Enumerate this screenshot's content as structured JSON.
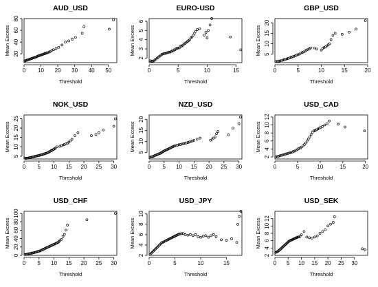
{
  "chart_data": [
    {
      "type": "scatter",
      "title": "AUD_USD",
      "xlabel": "Threshold",
      "ylabel": "Mean Excess",
      "xlim": [
        0,
        55
      ],
      "ylim": [
        5,
        80
      ],
      "xticks": [
        0,
        10,
        20,
        30,
        40,
        50
      ],
      "yticks": [
        20,
        40,
        60,
        80
      ],
      "x": [
        0.5,
        1.0,
        1.5,
        2.0,
        2.5,
        3.0,
        3.5,
        4.0,
        4.5,
        5.0,
        5.5,
        6.0,
        6.5,
        7.0,
        7.5,
        8.0,
        8.5,
        9.0,
        9.5,
        10.0,
        10.5,
        11.0,
        11.5,
        12.0,
        12.5,
        13.0,
        13.5,
        14.0,
        15.0,
        15.5,
        16.5,
        17.5,
        19.0,
        20.5,
        22.5,
        24.5,
        26.5,
        28.5,
        30.5,
        34.5,
        35.5,
        50.5,
        53.0
      ],
      "y": [
        8,
        8.5,
        9,
        9.5,
        10,
        10.5,
        11,
        11.5,
        12,
        12.5,
        13,
        13.5,
        14,
        14.5,
        15,
        16,
        16.5,
        17,
        17.5,
        18,
        18.5,
        19,
        19.5,
        20,
        20.5,
        21,
        21.5,
        22,
        23,
        24,
        26,
        27,
        29,
        31,
        35,
        40,
        42,
        45,
        48,
        55,
        66,
        62,
        78
      ]
    },
    {
      "type": "scatter",
      "title": "EURO-USD",
      "xlabel": "Threshold",
      "ylabel": "Mean Excess",
      "xlim": [
        0,
        16
      ],
      "ylim": [
        1.5,
        6.3
      ],
      "xticks": [
        0,
        5,
        10,
        15
      ],
      "yticks": [
        2,
        3,
        4,
        5,
        6
      ],
      "x": [
        0.2,
        0.4,
        0.6,
        0.8,
        1.0,
        1.2,
        1.4,
        1.6,
        1.8,
        2.0,
        2.2,
        2.4,
        2.6,
        2.8,
        3.0,
        3.2,
        3.4,
        3.6,
        3.8,
        4.0,
        4.2,
        4.4,
        4.6,
        4.8,
        5.0,
        5.2,
        5.4,
        5.6,
        5.8,
        6.0,
        6.2,
        6.4,
        6.6,
        6.8,
        7.0,
        7.2,
        7.4,
        7.6,
        7.8,
        8.0,
        8.3,
        8.7,
        9.5,
        9.8,
        10.0,
        10.2,
        10.5,
        10.8,
        14.0,
        15.8
      ],
      "y": [
        1.7,
        1.65,
        1.65,
        1.7,
        1.8,
        1.9,
        2.0,
        2.1,
        2.2,
        2.3,
        2.4,
        2.45,
        2.5,
        2.5,
        2.55,
        2.6,
        2.65,
        2.65,
        2.7,
        2.8,
        2.8,
        2.9,
        3.0,
        3.05,
        3.1,
        3.1,
        3.3,
        3.3,
        3.4,
        3.5,
        3.6,
        3.7,
        3.8,
        3.9,
        4.0,
        4.2,
        4.3,
        4.5,
        4.7,
        4.9,
        5.1,
        5.2,
        4.5,
        4.8,
        4.2,
        5.0,
        5.6,
        6.3,
        4.3,
        2.9
      ]
    },
    {
      "type": "scatter",
      "title": "GBP_USD",
      "xlabel": "Threshold",
      "ylabel": "Mean Excess",
      "xlim": [
        0,
        20
      ],
      "ylim": [
        1,
        22
      ],
      "xticks": [
        0,
        5,
        10,
        15,
        20
      ],
      "yticks": [
        5,
        10,
        15,
        20
      ],
      "x": [
        0.2,
        0.5,
        0.8,
        1.1,
        1.4,
        1.7,
        2.0,
        2.3,
        2.6,
        2.9,
        3.2,
        3.5,
        3.8,
        4.1,
        4.4,
        4.7,
        5.0,
        5.3,
        5.6,
        5.9,
        6.2,
        6.5,
        6.8,
        7.1,
        7.4,
        7.7,
        8.5,
        9.0,
        10.0,
        10.3,
        10.6,
        10.9,
        11.2,
        11.5,
        11.8,
        12.1,
        12.5,
        13.0,
        14.5,
        16.0,
        17.5,
        19.5
      ],
      "y": [
        1.5,
        1.6,
        1.7,
        1.8,
        2.0,
        2.2,
        2.4,
        2.6,
        2.8,
        3.0,
        3.3,
        3.5,
        3.8,
        4.0,
        4.3,
        4.6,
        4.8,
        5.1,
        5.5,
        5.8,
        6.1,
        6.5,
        7.0,
        7.3,
        7.6,
        8.0,
        8.0,
        7.5,
        7.0,
        7.8,
        8.2,
        8.5,
        9.0,
        9.5,
        10.0,
        12.0,
        14.0,
        15.0,
        14.5,
        15.5,
        17.0,
        21.0
      ]
    },
    {
      "type": "scatter",
      "title": "NOK_USD",
      "xlabel": "Threshold",
      "ylabel": "Mean Excess",
      "xlim": [
        0,
        31
      ],
      "ylim": [
        3.5,
        27
      ],
      "xticks": [
        0,
        5,
        10,
        15,
        20,
        25,
        30
      ],
      "yticks": [
        5,
        10,
        15,
        20,
        25
      ],
      "x": [
        0.3,
        0.6,
        0.9,
        1.2,
        1.5,
        1.8,
        2.1,
        2.4,
        2.7,
        3.0,
        3.3,
        3.6,
        3.9,
        4.2,
        4.5,
        4.8,
        5.1,
        5.4,
        5.7,
        6.0,
        6.3,
        6.6,
        6.9,
        7.2,
        7.5,
        7.8,
        8.1,
        8.4,
        8.7,
        9.0,
        9.3,
        9.6,
        9.9,
        10.2,
        10.5,
        11.0,
        12.0,
        12.5,
        13.0,
        13.5,
        14.0,
        14.5,
        15.0,
        15.5,
        16.0,
        17.0,
        18.0,
        22.5,
        24.0,
        25.0,
        26.5,
        30.0,
        30.5
      ],
      "y": [
        4.0,
        3.8,
        3.9,
        4.0,
        4.1,
        4.2,
        4.3,
        4.4,
        4.5,
        4.6,
        4.7,
        4.8,
        5.0,
        5.1,
        5.2,
        5.3,
        5.4,
        5.6,
        5.7,
        5.8,
        6.0,
        6.1,
        6.3,
        6.5,
        6.6,
        6.8,
        7.0,
        7.3,
        7.6,
        7.9,
        8.1,
        8.4,
        8.6,
        9.0,
        9.3,
        10.0,
        10.3,
        10.6,
        11.0,
        11.2,
        11.6,
        12.0,
        12.5,
        13.2,
        14.0,
        16.0,
        17.5,
        16.0,
        16.5,
        17.5,
        19.0,
        21.0,
        25.0
      ]
    },
    {
      "type": "scatter",
      "title": "NZD_USD",
      "xlabel": "Threshold",
      "ylabel": "Mean Excess",
      "xlim": [
        0,
        31
      ],
      "ylim": [
        2,
        22
      ],
      "xticks": [
        0,
        5,
        10,
        15,
        20,
        25,
        30
      ],
      "yticks": [
        5,
        10,
        15,
        20
      ],
      "x": [
        0.3,
        0.6,
        0.9,
        1.2,
        1.5,
        1.8,
        2.1,
        2.4,
        2.7,
        3.0,
        3.3,
        3.6,
        3.9,
        4.2,
        4.5,
        4.8,
        5.1,
        5.4,
        5.7,
        6.0,
        6.3,
        6.6,
        6.9,
        7.2,
        7.5,
        7.8,
        8.1,
        8.5,
        9.0,
        9.5,
        10.0,
        10.5,
        11.0,
        11.5,
        12.0,
        12.5,
        13.0,
        13.5,
        14.0,
        14.5,
        15.0,
        16.0,
        17.0,
        20.5,
        21.0,
        21.5,
        22.0,
        22.5,
        23.0,
        26.5,
        28.0,
        30.0,
        30.5
      ],
      "y": [
        2.8,
        2.9,
        3.0,
        3.1,
        3.3,
        3.5,
        3.7,
        3.8,
        4.0,
        4.2,
        4.4,
        4.5,
        4.7,
        5.0,
        5.2,
        5.5,
        5.7,
        5.9,
        6.1,
        6.3,
        6.5,
        6.7,
        6.9,
        7.1,
        7.3,
        7.5,
        7.7,
        7.9,
        8.1,
        8.3,
        8.5,
        8.6,
        8.8,
        9.0,
        9.1,
        9.3,
        9.5,
        9.7,
        10.0,
        10.2,
        10.5,
        11.0,
        11.5,
        10.5,
        11.0,
        11.5,
        12.0,
        13.5,
        14.5,
        13.0,
        16.0,
        18.0,
        21.0
      ]
    },
    {
      "type": "scatter",
      "title": "USD_CAD",
      "xlabel": "Threshold",
      "ylabel": "Mean Excess",
      "xlim": [
        0,
        20.5
      ],
      "ylim": [
        1.5,
        12.5
      ],
      "xticks": [
        0,
        5,
        10,
        15,
        20
      ],
      "yticks": [
        2,
        4,
        6,
        8,
        10,
        12
      ],
      "x": [
        0.2,
        0.5,
        0.8,
        1.1,
        1.4,
        1.7,
        2.0,
        2.3,
        2.6,
        2.9,
        3.2,
        3.5,
        3.8,
        4.1,
        4.4,
        4.7,
        5.0,
        5.3,
        5.6,
        5.9,
        6.2,
        6.5,
        6.8,
        7.1,
        7.4,
        7.7,
        8.0,
        8.3,
        8.6,
        8.9,
        9.2,
        9.5,
        9.8,
        10.1,
        10.5,
        11.0,
        11.5,
        12.0,
        14.0,
        15.5,
        19.8
      ],
      "y": [
        2.0,
        2.1,
        2.2,
        2.3,
        2.4,
        2.5,
        2.6,
        2.7,
        2.8,
        2.9,
        3.0,
        3.1,
        3.2,
        3.4,
        3.5,
        3.7,
        3.9,
        4.1,
        4.3,
        4.5,
        4.8,
        5.1,
        5.5,
        6.0,
        6.5,
        7.0,
        7.6,
        8.2,
        8.5,
        8.6,
        8.8,
        9.0,
        9.2,
        9.4,
        9.6,
        10.0,
        10.3,
        11.0,
        10.2,
        9.5,
        8.5
      ]
    },
    {
      "type": "scatter",
      "title": "USD_CHF",
      "xlabel": "Threshold",
      "ylabel": "Mean Excess",
      "xlim": [
        0,
        31
      ],
      "ylim": [
        0,
        105
      ],
      "xticks": [
        0,
        5,
        10,
        15,
        20,
        25,
        30
      ],
      "yticks": [
        0,
        20,
        40,
        60,
        80,
        100
      ],
      "x": [
        0.3,
        0.6,
        0.9,
        1.2,
        1.5,
        1.8,
        2.1,
        2.4,
        2.7,
        3.0,
        3.3,
        3.6,
        3.9,
        4.2,
        4.5,
        4.8,
        5.1,
        5.4,
        5.7,
        6.0,
        6.3,
        6.6,
        6.9,
        7.2,
        7.5,
        7.8,
        8.1,
        8.4,
        8.7,
        9.0,
        9.3,
        9.6,
        9.9,
        10.2,
        10.5,
        10.8,
        11.1,
        11.4,
        11.7,
        12.0,
        12.5,
        13.0,
        13.5,
        14.0,
        14.5,
        21.0,
        30.5
      ],
      "y": [
        2,
        2,
        2.5,
        3,
        3.5,
        4,
        4.5,
        5,
        5.5,
        6,
        6.5,
        7,
        7.5,
        8,
        9,
        9.5,
        10,
        11,
        12,
        13,
        14,
        15,
        16,
        17,
        18,
        19,
        20,
        21,
        22,
        23,
        24,
        25,
        26,
        27,
        28,
        29,
        30,
        31,
        33,
        36,
        38,
        45,
        50,
        60,
        72,
        85,
        100
      ]
    },
    {
      "type": "scatter",
      "title": "USD_JPY",
      "xlabel": "Threshold",
      "ylabel": "Mean Excess",
      "xlim": [
        0,
        18
      ],
      "ylim": [
        2,
        10.5
      ],
      "xticks": [
        0,
        5,
        10,
        15
      ],
      "yticks": [
        2,
        4,
        6,
        8,
        10
      ],
      "x": [
        0.2,
        0.4,
        0.6,
        0.8,
        1.0,
        1.2,
        1.4,
        1.6,
        1.8,
        2.0,
        2.2,
        2.4,
        2.6,
        2.8,
        3.0,
        3.2,
        3.4,
        3.6,
        3.8,
        4.0,
        4.2,
        4.4,
        4.6,
        4.8,
        5.0,
        5.2,
        5.4,
        5.6,
        5.8,
        6.0,
        6.3,
        6.6,
        7.0,
        7.5,
        8.0,
        8.5,
        9.0,
        9.5,
        10.0,
        10.5,
        11.0,
        11.5,
        12.0,
        12.5,
        13.0,
        14.0,
        15.0,
        16.0,
        17.0,
        17.2,
        17.5,
        17.8
      ],
      "y": [
        2.2,
        2.4,
        2.6,
        2.8,
        3.0,
        3.2,
        3.4,
        3.6,
        3.8,
        4.0,
        4.2,
        4.4,
        4.5,
        4.6,
        4.7,
        4.8,
        4.9,
        5.0,
        5.1,
        5.2,
        5.3,
        5.4,
        5.5,
        5.6,
        5.7,
        5.8,
        5.9,
        6.0,
        6.1,
        6.1,
        6.2,
        6.2,
        6.0,
        5.9,
        6.0,
        5.8,
        6.0,
        5.6,
        5.5,
        5.7,
        5.8,
        5.5,
        5.8,
        6.0,
        5.6,
        5.0,
        4.9,
        5.2,
        4.5,
        8.0,
        9.5,
        10.5
      ]
    },
    {
      "type": "scatter",
      "title": "USD_SEK",
      "xlabel": "Threshold",
      "ylabel": "Mean Excess",
      "xlim": [
        0,
        35
      ],
      "ylim": [
        2,
        14
      ],
      "xticks": [
        0,
        5,
        10,
        15,
        20,
        25,
        30
      ],
      "yticks": [
        2,
        4,
        6,
        8,
        10,
        12
      ],
      "x": [
        0.3,
        0.6,
        0.9,
        1.2,
        1.5,
        1.8,
        2.1,
        2.4,
        2.7,
        3.0,
        3.3,
        3.6,
        3.9,
        4.2,
        4.5,
        4.8,
        5.1,
        5.4,
        5.7,
        6.0,
        6.3,
        6.6,
        6.9,
        7.2,
        7.5,
        7.8,
        8.1,
        8.4,
        8.7,
        9.0,
        9.5,
        10.0,
        11.0,
        12.0,
        13.0,
        14.0,
        15.0,
        16.0,
        17.0,
        18.0,
        19.0,
        20.0,
        21.0,
        22.0,
        22.5,
        33.0,
        34.0
      ],
      "y": [
        2.8,
        2.9,
        3.0,
        3.1,
        3.3,
        3.5,
        3.7,
        3.9,
        4.1,
        4.3,
        4.5,
        4.7,
        4.9,
        5.1,
        5.3,
        5.5,
        5.7,
        5.9,
        6.0,
        6.1,
        6.2,
        6.3,
        6.4,
        6.5,
        6.6,
        6.7,
        6.8,
        6.9,
        7.0,
        7.0,
        7.2,
        7.6,
        8.5,
        7.0,
        6.8,
        6.7,
        7.0,
        7.3,
        8.0,
        8.5,
        9.0,
        10.0,
        10.5,
        11.0,
        12.5,
        3.8,
        3.5
      ]
    }
  ]
}
